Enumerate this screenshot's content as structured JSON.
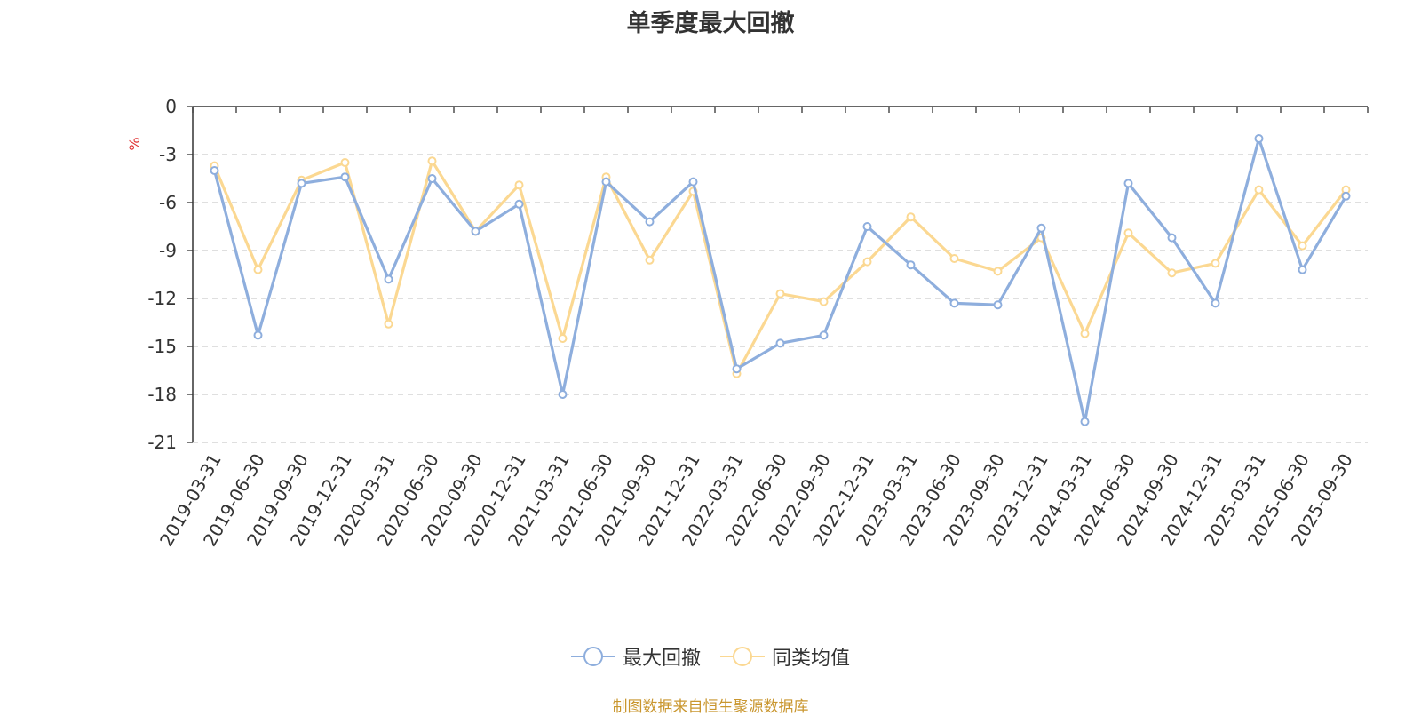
{
  "chart_data": {
    "type": "line",
    "title": "单季度最大回撤",
    "ylabel": "%",
    "xlabel": "",
    "ylim": [
      -21,
      0
    ],
    "yticks": [
      0,
      -3,
      -6,
      -9,
      -12,
      -15,
      -18,
      -21
    ],
    "grid": true,
    "legend_position": "bottom",
    "categories": [
      "2019-03-31",
      "2019-06-30",
      "2019-09-30",
      "2019-12-31",
      "2020-03-31",
      "2020-06-30",
      "2020-09-30",
      "2020-12-31",
      "2021-03-31",
      "2021-06-30",
      "2021-09-30",
      "2021-12-31",
      "2022-03-31",
      "2022-06-30",
      "2022-09-30",
      "2022-12-31",
      "2023-03-31",
      "2023-06-30",
      "2023-09-30",
      "2023-12-31",
      "2024-03-31",
      "2024-06-30",
      "2024-09-30",
      "2024-12-31",
      "2025-03-31",
      "2025-06-30",
      "2025-09-30"
    ],
    "series": [
      {
        "name": "最大回撤",
        "color": "#8eaedd",
        "values": [
          -4.0,
          -14.3,
          -4.8,
          -4.4,
          -10.8,
          -4.5,
          -7.8,
          -6.1,
          -18.0,
          -4.7,
          -7.2,
          -4.7,
          -16.4,
          -14.8,
          -14.3,
          -7.5,
          -9.9,
          -12.3,
          -12.4,
          -7.6,
          -19.7,
          -4.8,
          -8.2,
          -12.3,
          -2.0,
          -10.2,
          -5.6
        ]
      },
      {
        "name": "同类均值",
        "color": "#fbd892",
        "values": [
          -3.7,
          -10.2,
          -4.6,
          -3.5,
          -13.6,
          -3.4,
          -7.8,
          -4.9,
          -14.5,
          -4.4,
          -9.6,
          -5.3,
          -16.7,
          -11.7,
          -12.2,
          -9.7,
          -6.9,
          -9.5,
          -10.3,
          -8.2,
          -14.2,
          -7.9,
          -10.4,
          -9.8,
          -5.2,
          -8.7,
          -5.2
        ]
      }
    ]
  },
  "source_note": "制图数据来自恒生聚源数据库"
}
